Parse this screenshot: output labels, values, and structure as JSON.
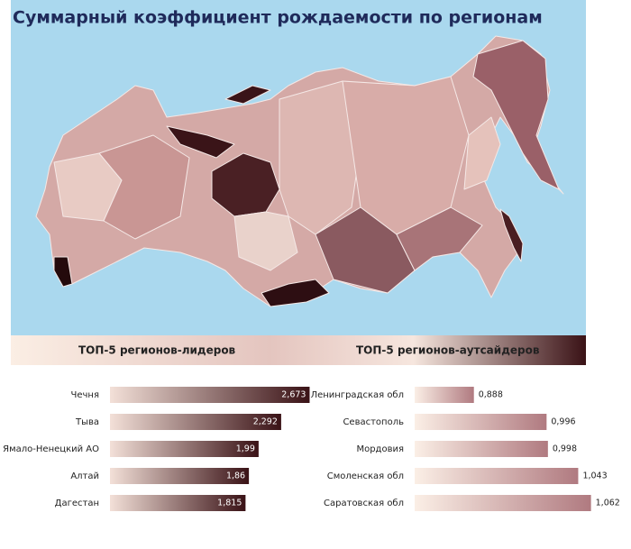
{
  "title": "Суммарный коэффициент рождаемости по регионам",
  "chart_data": [
    {
      "type": "bar",
      "title": "ТОП-5 регионов-лидеров",
      "categories": [
        "Чечня",
        "Тыва",
        "Ямало-Ненецкий АО",
        "Алтай",
        "Дагестан"
      ],
      "values": [
        2.673,
        2.292,
        1.99,
        1.86,
        1.815
      ],
      "value_labels": [
        "2,673",
        "2,292",
        "1,99",
        "1,86",
        "1,815"
      ],
      "xlim": [
        0,
        2.8
      ],
      "colors": [
        "#f3e0d8",
        "#3a1216"
      ],
      "label_position": "inside"
    },
    {
      "type": "bar",
      "title": "ТОП-5 регионов-аутсайдеров",
      "categories": [
        "Ленинградская обл",
        "Севастополь",
        "Мордовия",
        "Смоленская обл",
        "Саратовская обл"
      ],
      "values": [
        0.888,
        0.996,
        0.998,
        1.043,
        1.062
      ],
      "value_labels": [
        "0,888",
        "0,996",
        "0,998",
        "1,043",
        "1,062"
      ],
      "xlim": [
        0.8,
        1.1
      ],
      "colors": [
        "#fbefe6",
        "#b07a80"
      ],
      "label_position": "outside"
    }
  ]
}
